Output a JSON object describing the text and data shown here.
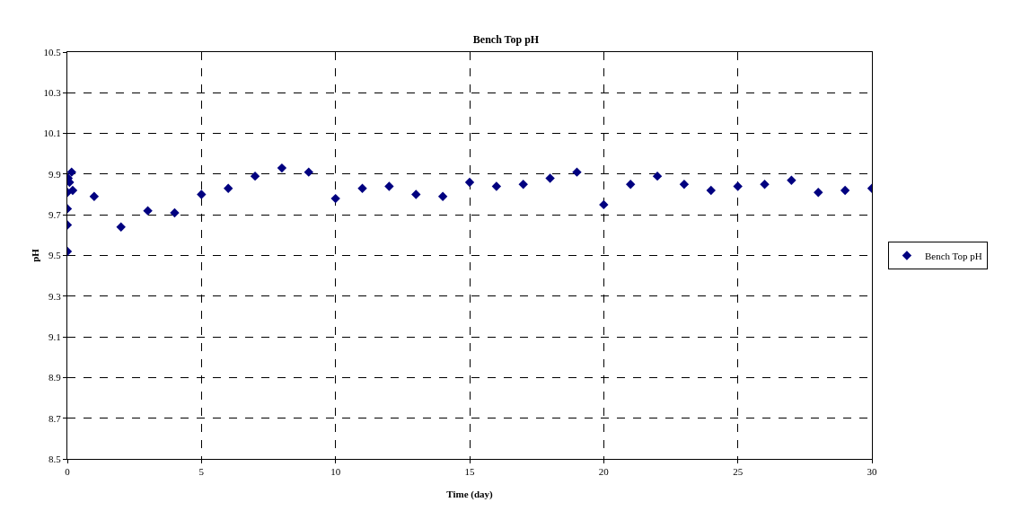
{
  "chart_data": {
    "type": "scatter",
    "title": "Bench Top pH",
    "xlabel": "Time (day)",
    "ylabel": "pH",
    "xlim": [
      0,
      30
    ],
    "xticks": [
      0,
      5,
      10,
      15,
      20,
      25,
      30
    ],
    "ylim": [
      8.5,
      10.5
    ],
    "yticks": [
      8.5,
      8.7,
      8.9,
      9.1,
      9.3,
      9.5,
      9.7,
      9.9,
      10.1,
      10.3,
      10.5
    ],
    "grid": true,
    "legend": "right",
    "marker": "diamond",
    "series": [
      {
        "name": "Bench Top pH",
        "color": "#000080",
        "x": [
          0,
          0,
          0,
          0,
          0.03,
          0.08,
          0.16,
          0.2,
          1,
          2,
          3,
          4,
          5,
          6,
          7,
          8,
          9,
          10,
          11,
          12,
          13,
          14,
          15,
          16,
          17,
          18,
          19,
          20,
          21,
          22,
          23,
          24,
          25,
          26,
          27,
          28,
          29,
          30
        ],
        "values": [
          9.52,
          9.65,
          9.73,
          9.81,
          9.88,
          9.86,
          9.91,
          9.82,
          9.79,
          9.64,
          9.72,
          9.71,
          9.8,
          9.83,
          9.89,
          9.93,
          9.91,
          9.78,
          9.83,
          9.84,
          9.8,
          9.79,
          9.86,
          9.84,
          9.85,
          9.88,
          9.91,
          9.75,
          9.85,
          9.89,
          9.85,
          9.82,
          9.84,
          9.85,
          9.87,
          9.81,
          9.82,
          9.83
        ]
      }
    ]
  }
}
